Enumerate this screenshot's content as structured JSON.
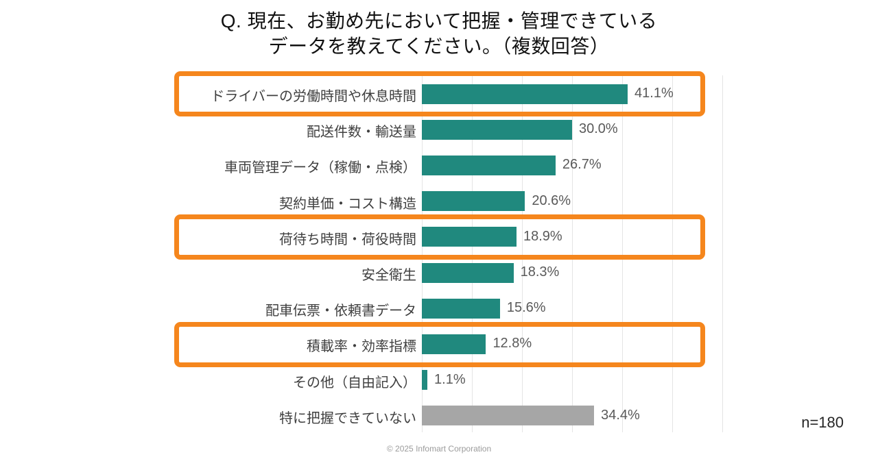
{
  "title": {
    "line1": "Q. 現在、お勤め先において把握・管理できている",
    "line2": "データを教えてください。（複数回答）"
  },
  "sample_size": "n=180",
  "footer": "© 2025 Infomart Corporation",
  "colors": {
    "bar_teal": "#20897E",
    "bar_gray": "#A6A6A6",
    "highlight_orange": "#F5861D",
    "category_label": "#3F3F3F",
    "value_label": "#595959",
    "gridline": "#E4E4E4"
  },
  "chart_data": {
    "type": "bar",
    "orientation": "horizontal",
    "title": "Q. 現在、お勤め先において把握・管理できているデータを教えてください。（複数回答）",
    "xlabel": "",
    "ylabel": "",
    "xlim": [
      0,
      60
    ],
    "gridline_step_percent": 10,
    "grid": true,
    "legend": false,
    "categories": [
      "ドライバーの労働時間や休息時間",
      "配送件数・輸送量",
      "車両管理データ（稼働・点検）",
      "契約単価・コスト構造",
      "荷待ち時間・荷役時間",
      "安全衛生",
      "配車伝票・依頼書データ",
      "積載率・効率指標",
      "その他（自由記入）",
      "特に把握できていない"
    ],
    "values": [
      41.1,
      30.0,
      26.7,
      20.6,
      18.9,
      18.3,
      15.6,
      12.8,
      1.1,
      34.4
    ],
    "value_labels": [
      "41.1%",
      "30.0%",
      "26.7%",
      "20.6%",
      "18.9%",
      "18.3%",
      "15.6%",
      "12.8%",
      "1.1%",
      "34.4%"
    ],
    "bar_colors": [
      "teal",
      "teal",
      "teal",
      "teal",
      "teal",
      "teal",
      "teal",
      "teal",
      "teal",
      "gray"
    ],
    "highlighted_rows": [
      0,
      4,
      7
    ]
  }
}
